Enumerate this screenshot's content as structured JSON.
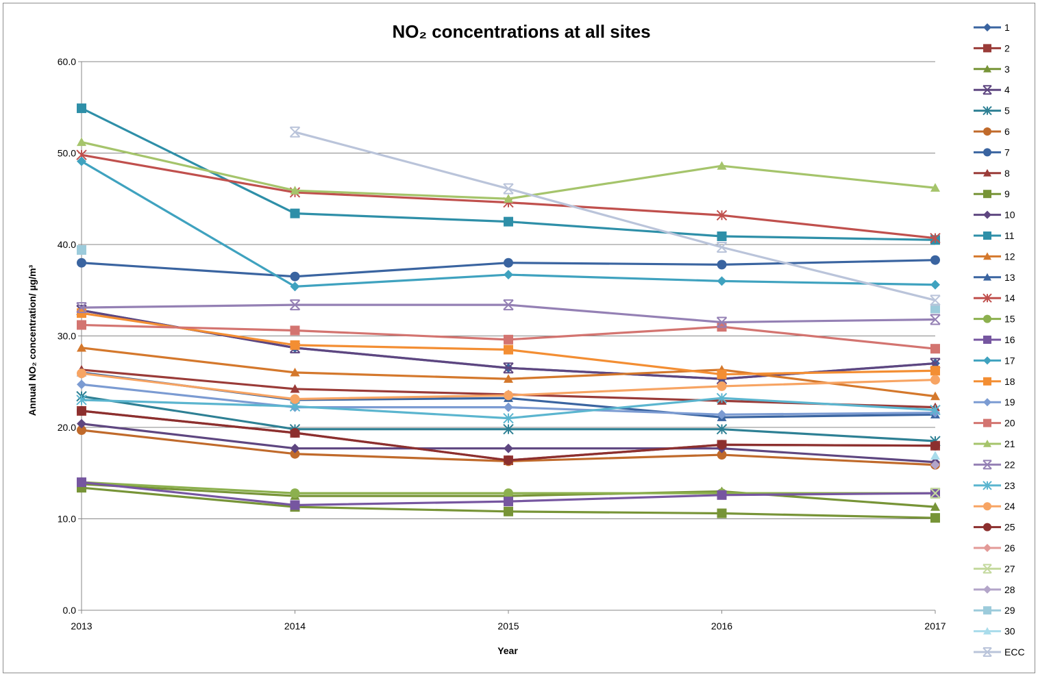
{
  "chart_data": {
    "type": "line",
    "title": "NO₂ concentrations at all sites",
    "xlabel": "Year",
    "ylabel": "Annual NO₂ concentration/ µg/m³",
    "categories": [
      "2013",
      "2014",
      "2015",
      "2016",
      "2017"
    ],
    "ylim": [
      0,
      60
    ],
    "yticks": [
      "0.0",
      "10.0",
      "20.0",
      "30.0",
      "40.0",
      "50.0",
      "60.0"
    ],
    "grid": true,
    "legend_position": "right",
    "series": [
      {
        "name": "1",
        "color": "#3A64A0",
        "marker": "diamond",
        "values": [
          32.8,
          28.7,
          26.5,
          25.3,
          27.0
        ]
      },
      {
        "name": "2",
        "color": "#9A3B38",
        "marker": "square",
        "values": [
          21.8,
          19.4,
          16.4,
          18.1,
          18.0
        ]
      },
      {
        "name": "3",
        "color": "#779437",
        "marker": "triangle",
        "values": [
          13.8,
          12.5,
          12.5,
          13.0,
          11.3
        ]
      },
      {
        "name": "4",
        "color": "#5E4680",
        "marker": "xmark",
        "values": [
          32.8,
          28.7,
          26.5,
          25.3,
          27.0
        ]
      },
      {
        "name": "5",
        "color": "#2E8094",
        "marker": "star",
        "values": [
          23.4,
          19.8,
          19.8,
          19.8,
          18.5
        ]
      },
      {
        "name": "6",
        "color": "#C06A2B",
        "marker": "circle",
        "values": [
          19.7,
          17.1,
          16.3,
          17.0,
          15.9
        ]
      },
      {
        "name": "7",
        "color": "#3A64A0",
        "marker": "circle",
        "values": [
          38.0,
          36.5,
          38.0,
          37.8,
          38.3
        ]
      },
      {
        "name": "8",
        "color": "#9A3B38",
        "marker": "triangle",
        "values": [
          26.3,
          24.2,
          23.6,
          22.9,
          22.2
        ]
      },
      {
        "name": "9",
        "color": "#779437",
        "marker": "square",
        "values": [
          13.4,
          11.3,
          10.8,
          10.6,
          10.1
        ]
      },
      {
        "name": "10",
        "color": "#5E4680",
        "marker": "diamond",
        "values": [
          20.4,
          17.7,
          17.7,
          17.7,
          16.2
        ]
      },
      {
        "name": "11",
        "color": "#2E8FA8",
        "marker": "square",
        "values": [
          54.9,
          43.4,
          42.5,
          40.9,
          40.5
        ]
      },
      {
        "name": "12",
        "color": "#D4782C",
        "marker": "triangle",
        "values": [
          28.7,
          26.0,
          25.3,
          26.3,
          23.4
        ]
      },
      {
        "name": "13",
        "color": "#3A64A0",
        "marker": "triangle",
        "values": [
          26.0,
          23.0,
          23.2,
          21.1,
          21.4
        ]
      },
      {
        "name": "14",
        "color": "#C0504D",
        "marker": "star",
        "values": [
          49.8,
          45.7,
          44.6,
          43.2,
          40.7
        ]
      },
      {
        "name": "15",
        "color": "#8CB04E",
        "marker": "circle",
        "values": [
          14.0,
          12.8,
          12.8,
          12.8,
          12.8
        ]
      },
      {
        "name": "16",
        "color": "#7656A0",
        "marker": "square",
        "values": [
          14.0,
          11.5,
          11.9,
          12.6,
          12.8
        ]
      },
      {
        "name": "17",
        "color": "#3FA2BF",
        "marker": "diamond",
        "values": [
          49.1,
          35.4,
          36.7,
          36.0,
          35.6
        ]
      },
      {
        "name": "18",
        "color": "#F38E33",
        "marker": "square",
        "values": [
          32.5,
          29.0,
          28.5,
          25.8,
          26.2
        ]
      },
      {
        "name": "19",
        "color": "#7B9BD2",
        "marker": "diamond",
        "values": [
          24.7,
          22.2,
          22.2,
          21.4,
          21.6
        ]
      },
      {
        "name": "20",
        "color": "#D37470",
        "marker": "square",
        "values": [
          31.2,
          30.6,
          29.6,
          31.0,
          28.6
        ]
      },
      {
        "name": "21",
        "color": "#A5C46B",
        "marker": "triangle",
        "values": [
          51.2,
          45.9,
          45.0,
          48.6,
          46.2
        ]
      },
      {
        "name": "22",
        "color": "#9480B4",
        "marker": "xmark",
        "values": [
          33.1,
          33.4,
          33.4,
          31.5,
          31.8
        ]
      },
      {
        "name": "23",
        "color": "#5BB5CF",
        "marker": "star",
        "values": [
          23.0,
          22.3,
          21.0,
          23.2,
          21.9
        ]
      },
      {
        "name": "24",
        "color": "#F7A463",
        "marker": "circle",
        "values": [
          25.9,
          23.1,
          23.5,
          24.5,
          25.2
        ]
      },
      {
        "name": "25",
        "color": "#8C2F2E",
        "marker": "circle",
        "values": [
          21.8,
          19.4,
          16.4,
          18.1,
          18.0
        ]
      },
      {
        "name": "26",
        "color": "#E39A97",
        "marker": "diamond",
        "values": [
          null,
          null,
          null,
          null,
          null
        ]
      },
      {
        "name": "27",
        "color": "#C4D99E",
        "marker": "xmark",
        "values": [
          null,
          null,
          null,
          null,
          12.8
        ]
      },
      {
        "name": "28",
        "color": "#B3A5C9",
        "marker": "diamond",
        "values": [
          null,
          null,
          null,
          null,
          15.9
        ]
      },
      {
        "name": "29",
        "color": "#9CCBDB",
        "marker": "square",
        "values": [
          39.4,
          null,
          null,
          null,
          33.0
        ]
      },
      {
        "name": "30",
        "color": "#A9DCEB",
        "marker": "triangle",
        "values": [
          null,
          null,
          null,
          null,
          16.9
        ]
      },
      {
        "name": "ECC",
        "color": "#BAC4DA",
        "marker": "xmark",
        "values": [
          null,
          52.3,
          46.1,
          39.7,
          33.9
        ]
      }
    ]
  }
}
